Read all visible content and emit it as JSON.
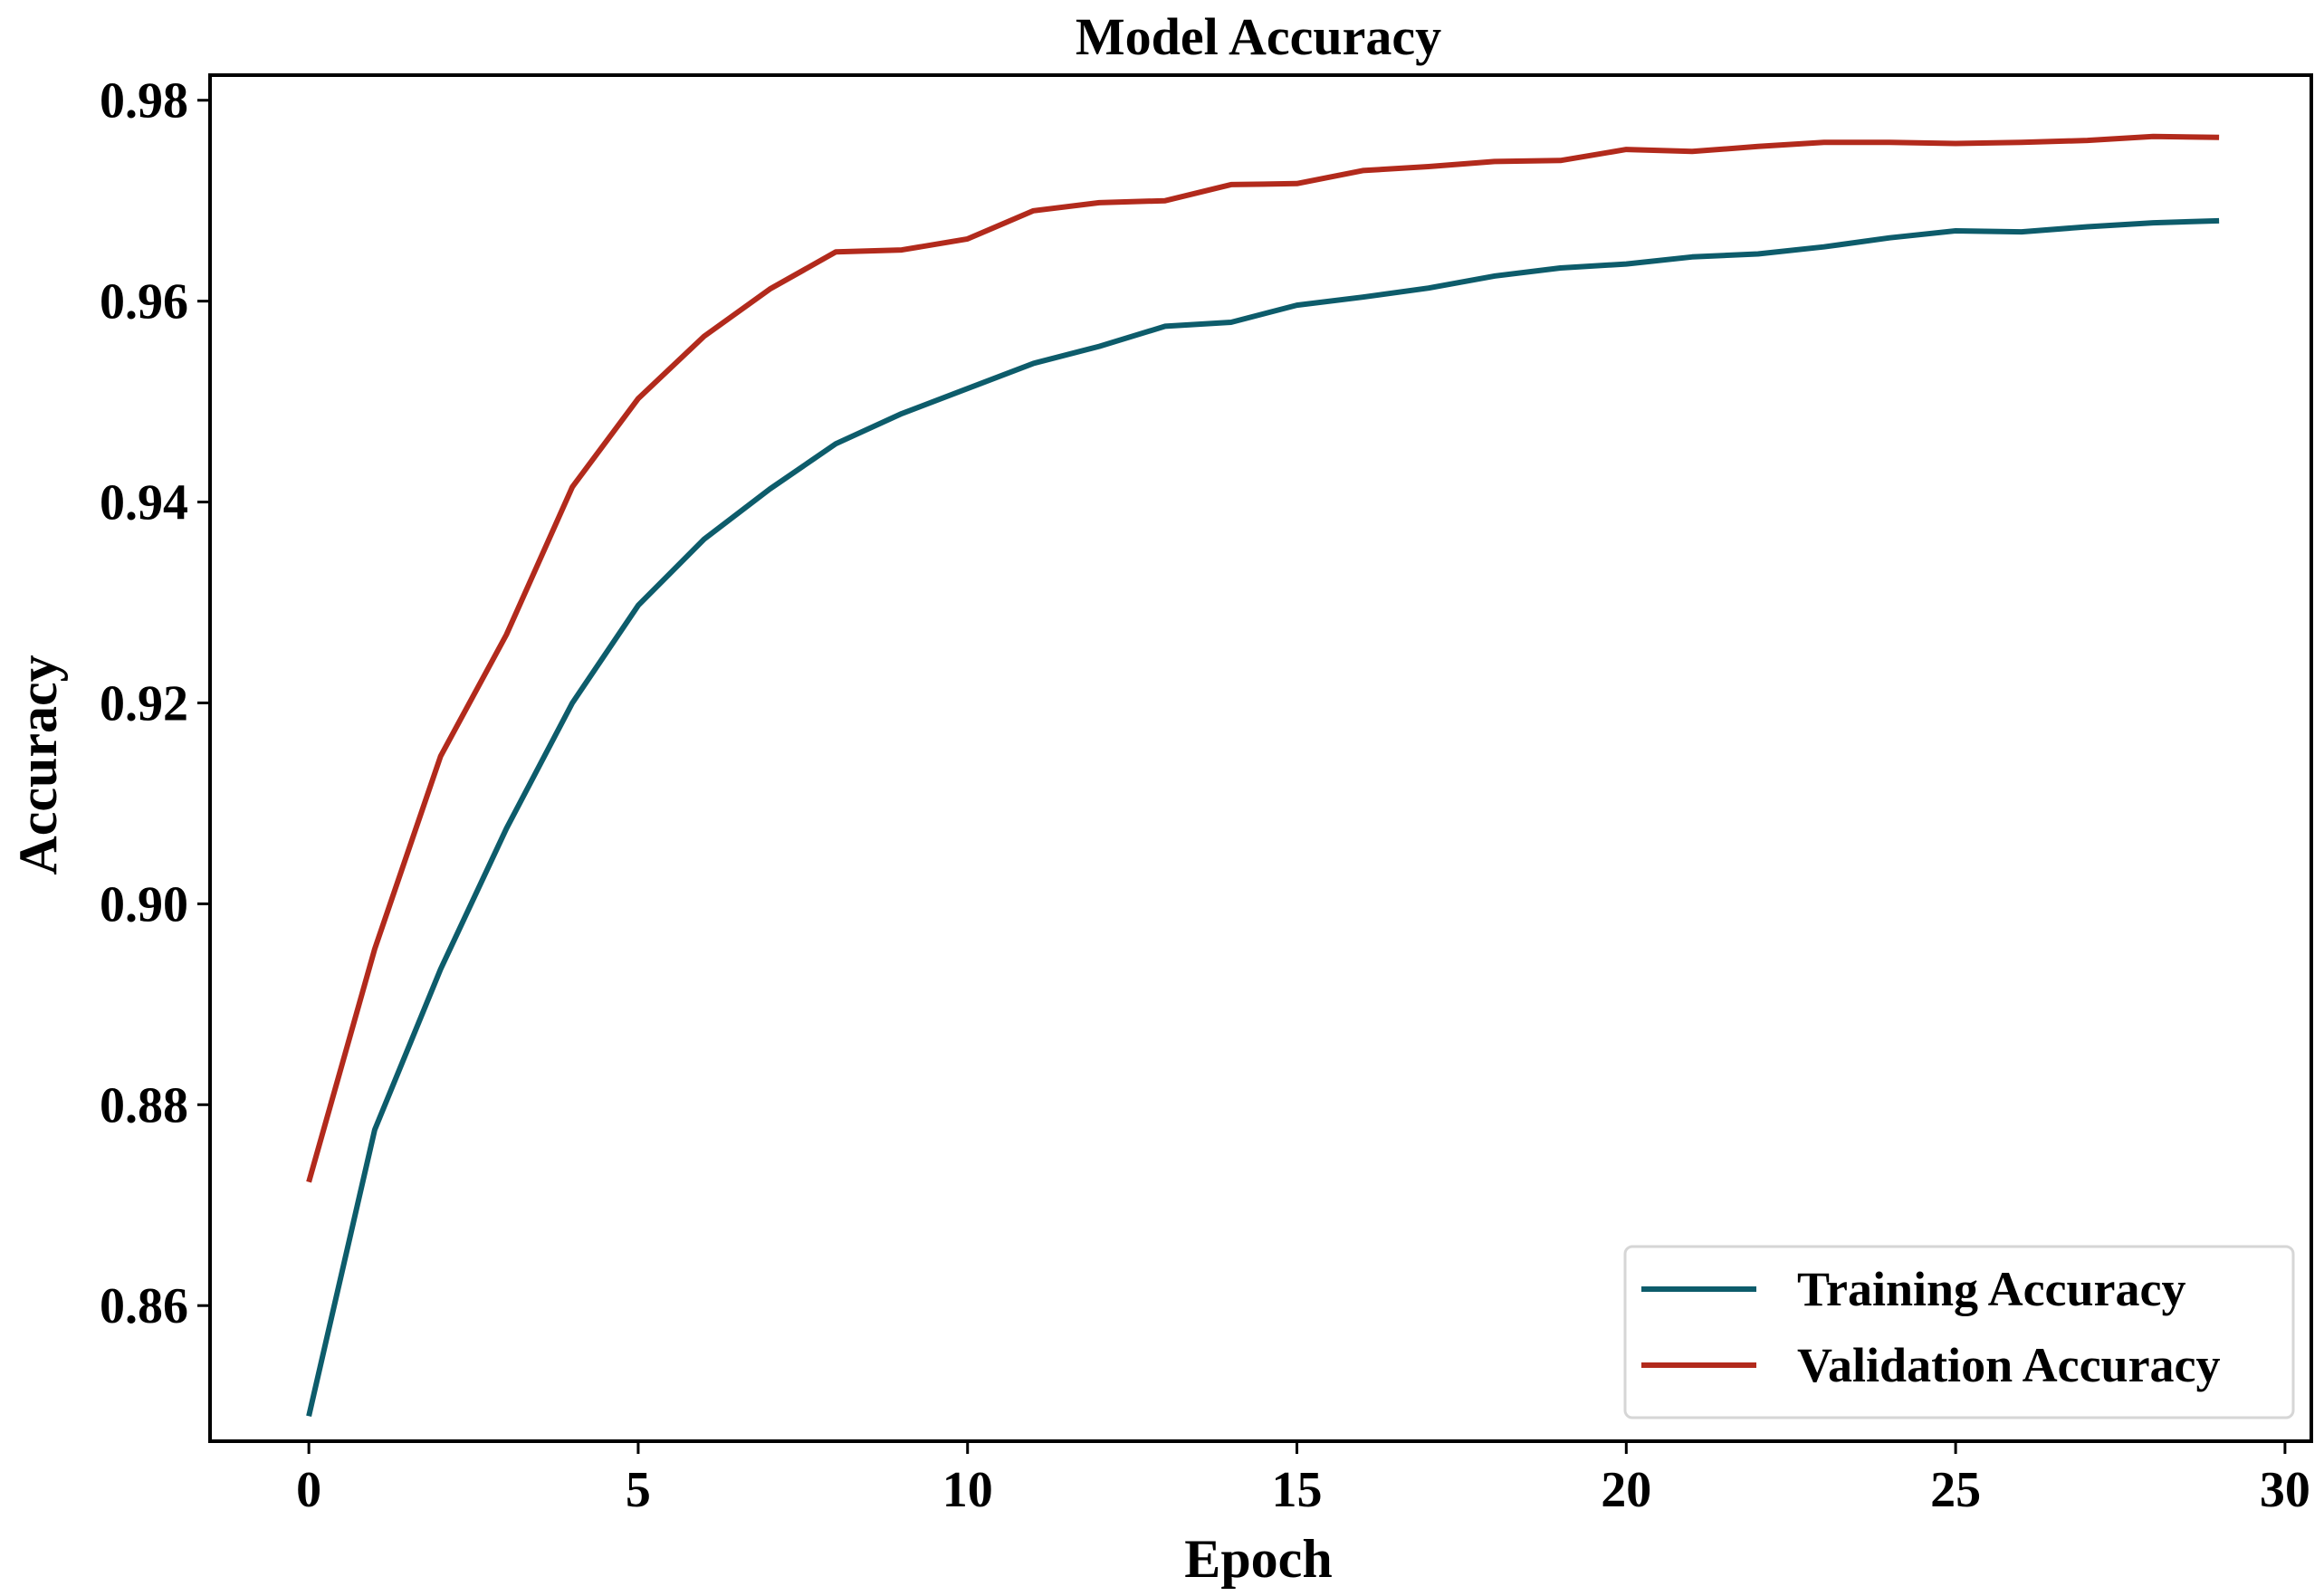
{
  "chart_data": {
    "type": "line",
    "title": "Model Accuracy",
    "xlabel": "Epoch",
    "ylabel": "Accuracy",
    "xlim": [
      -1.5,
      30.4
    ],
    "ylim": [
      0.8465,
      0.9825
    ],
    "xticks": [
      0,
      5,
      10,
      15,
      20,
      25,
      30
    ],
    "xtick_labels": [
      "0",
      "5",
      "10",
      "15",
      "20",
      "25",
      "30"
    ],
    "yticks": [
      0.86,
      0.88,
      0.9,
      0.92,
      0.94,
      0.96,
      0.98
    ],
    "ytick_labels": [
      "0.86",
      "0.88",
      "0.90",
      "0.92",
      "0.94",
      "0.96",
      "0.98"
    ],
    "grid": false,
    "legend_position": "lower-right",
    "x": [
      0,
      1,
      2,
      3,
      4,
      5,
      6,
      7,
      8,
      9,
      10,
      11,
      12,
      13,
      14,
      15,
      16,
      17,
      18,
      19,
      20,
      21,
      22,
      23,
      24,
      25,
      26,
      27,
      28,
      29
    ],
    "series": [
      {
        "name": "Training Accuracy",
        "color": "#0d5c6b",
        "values": [
          0.849,
          0.8775,
          0.8935,
          0.9075,
          0.92,
          0.9297,
          0.9363,
          0.9413,
          0.9458,
          0.9488,
          0.9513,
          0.9538,
          0.9555,
          0.9575,
          0.9579,
          0.9596,
          0.9604,
          0.9613,
          0.9625,
          0.9633,
          0.9637,
          0.9644,
          0.9647,
          0.9654,
          0.9663,
          0.967,
          0.9669,
          0.9674,
          0.9678,
          0.968
        ]
      },
      {
        "name": "Validation Accuracy",
        "color": "#b22a1c",
        "values": [
          0.8723,
          0.8955,
          0.9147,
          0.9268,
          0.9415,
          0.9503,
          0.9565,
          0.9612,
          0.9649,
          0.9651,
          0.9662,
          0.969,
          0.9698,
          0.97,
          0.9716,
          0.9717,
          0.973,
          0.9734,
          0.9739,
          0.974,
          0.9751,
          0.9749,
          0.9754,
          0.9758,
          0.9758,
          0.9757,
          0.9758,
          0.976,
          0.9764,
          0.9763
        ]
      }
    ]
  }
}
